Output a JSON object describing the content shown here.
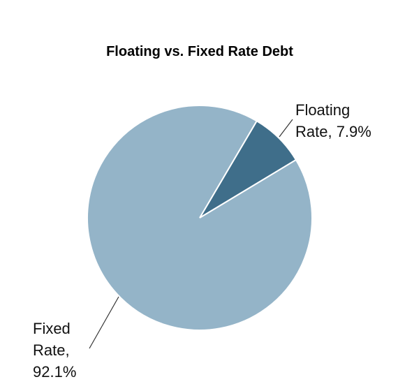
{
  "chart_data": {
    "type": "pie",
    "title": "Floating vs. Fixed Rate Debt",
    "categories": [
      "Floating Rate",
      "Fixed Rate"
    ],
    "values": [
      7.9,
      92.1
    ],
    "value_labels": [
      "Floating Rate, 7.9%",
      "Fixed Rate, 92.1%"
    ],
    "colors": [
      "#3f6e8a",
      "#94b4c8"
    ]
  }
}
